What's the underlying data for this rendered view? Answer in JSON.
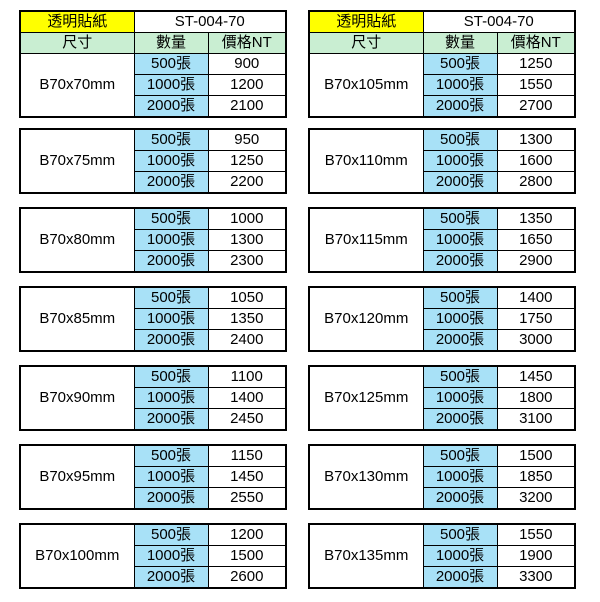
{
  "colors": {
    "yellow": "#FFFF00",
    "green": "#C9EED2",
    "cyan": "#A8E1F7",
    "border": "#000000",
    "background": "#FFFFFF"
  },
  "header": {
    "product_label": "透明貼紙",
    "product_code": "ST-004-70",
    "col_size": "尺寸",
    "col_qty": "數量",
    "col_price": "價格NT"
  },
  "quantities": [
    "500張",
    "1000張",
    "2000張"
  ],
  "columns": [
    {
      "blocks": [
        {
          "size": "B70x70mm",
          "prices": [
            "900",
            "1200",
            "2100"
          ]
        },
        {
          "size": "B70x75mm",
          "prices": [
            "950",
            "1250",
            "2200"
          ]
        },
        {
          "size": "B70x80mm",
          "prices": [
            "1000",
            "1300",
            "2300"
          ]
        },
        {
          "size": "B70x85mm",
          "prices": [
            "1050",
            "1350",
            "2400"
          ]
        },
        {
          "size": "B70x90mm",
          "prices": [
            "1100",
            "1400",
            "2450"
          ]
        },
        {
          "size": "B70x95mm",
          "prices": [
            "1150",
            "1450",
            "2550"
          ]
        },
        {
          "size": "B70x100mm",
          "prices": [
            "1200",
            "1500",
            "2600"
          ]
        }
      ]
    },
    {
      "blocks": [
        {
          "size": "B70x105mm",
          "prices": [
            "1250",
            "1550",
            "2700"
          ]
        },
        {
          "size": "B70x110mm",
          "prices": [
            "1300",
            "1600",
            "2800"
          ]
        },
        {
          "size": "B70x115mm",
          "prices": [
            "1350",
            "1650",
            "2900"
          ]
        },
        {
          "size": "B70x120mm",
          "prices": [
            "1400",
            "1750",
            "3000"
          ]
        },
        {
          "size": "B70x125mm",
          "prices": [
            "1450",
            "1800",
            "3100"
          ]
        },
        {
          "size": "B70x130mm",
          "prices": [
            "1500",
            "1850",
            "3200"
          ]
        },
        {
          "size": "B70x135mm",
          "prices": [
            "1550",
            "1900",
            "3300"
          ]
        }
      ]
    }
  ]
}
